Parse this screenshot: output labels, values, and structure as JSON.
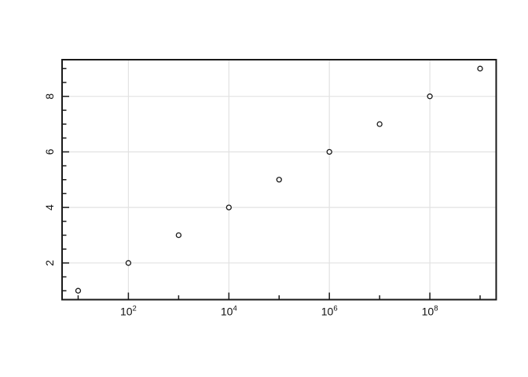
{
  "chart_data": {
    "type": "scatter",
    "title": "",
    "xlabel": "",
    "ylabel": "",
    "xscale": "log10",
    "x": [
      10,
      100,
      1000,
      10000,
      100000,
      1000000,
      10000000,
      100000000,
      1000000000
    ],
    "y": [
      1,
      2,
      3,
      4,
      5,
      6,
      7,
      8,
      9
    ],
    "xlim_log10": [
      0.68,
      9.32
    ],
    "ylim": [
      0.68,
      9.32
    ],
    "x_major_ticks": [
      {
        "log10": 2,
        "base": "10",
        "exp": "2"
      },
      {
        "log10": 4,
        "base": "10",
        "exp": "4"
      },
      {
        "log10": 6,
        "base": "10",
        "exp": "6"
      },
      {
        "log10": 8,
        "base": "10",
        "exp": "8"
      }
    ],
    "x_minor_ticks_log10": [
      1,
      3,
      5,
      7,
      9
    ],
    "y_major_ticks": [
      {
        "value": 2,
        "label": "2"
      },
      {
        "value": 4,
        "label": "4"
      },
      {
        "value": 6,
        "label": "6"
      },
      {
        "value": 8,
        "label": "8"
      }
    ],
    "y_minor_ticks": [
      1,
      1.5,
      2.5,
      3,
      3.5,
      4.5,
      5,
      5.5,
      6.5,
      7,
      7.5,
      8.5,
      9
    ],
    "grid": "major",
    "legend": "none",
    "marker": "open-circle",
    "colors": {
      "background": "#ffffff",
      "axis": "#1a1a1a",
      "tick": "#1a1a1a",
      "grid": "#e2e2e2",
      "marker_stroke": "#1a1a1a",
      "marker_fill": "#ffffff",
      "label_text": "#111111"
    }
  }
}
